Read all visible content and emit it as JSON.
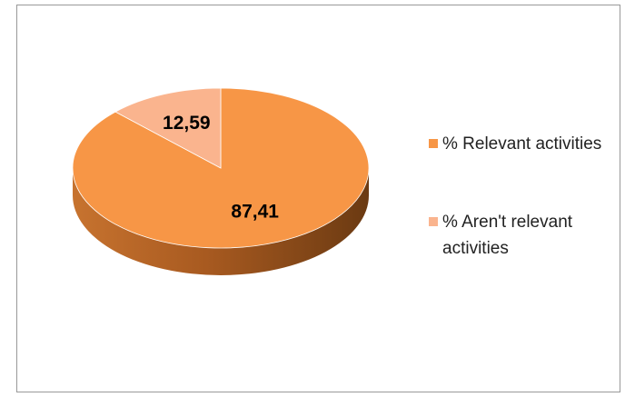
{
  "chart_data": {
    "type": "pie",
    "categories": [
      "% Relevant activities",
      "% Aren't relevant activities"
    ],
    "values": [
      87.41,
      12.59
    ],
    "value_labels": [
      "87,41",
      "12,59"
    ],
    "colors": [
      "#f79646",
      "#fab48e"
    ],
    "legend": "right"
  }
}
